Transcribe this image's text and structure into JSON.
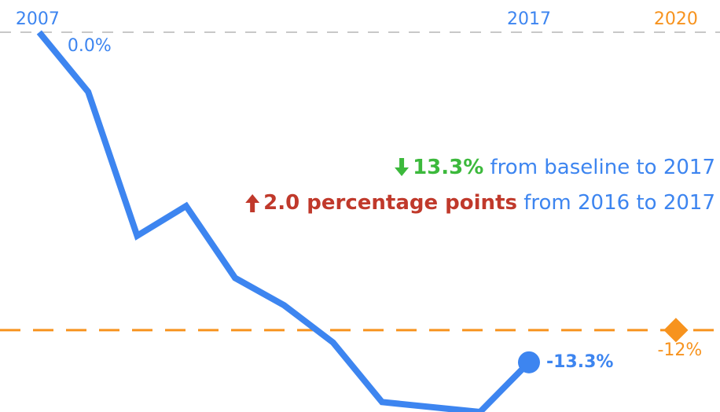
{
  "chart_data": {
    "type": "line",
    "x": [
      2007,
      2008,
      2009,
      2010,
      2011,
      2012,
      2013,
      2014,
      2015,
      2016,
      2017
    ],
    "series": [
      {
        "color": "#3d85f0",
        "values": [
          0.0,
          -2.4,
          -8.2,
          -7.0,
          -9.9,
          -11.0,
          -12.5,
          -14.9,
          -15.1,
          -15.3,
          -13.3
        ],
        "value_labels": [
          "0.0%",
          null,
          null,
          null,
          null,
          null,
          null,
          null,
          null,
          null,
          "-13.3%"
        ]
      }
    ],
    "target": {
      "x": 2020,
      "value": -12,
      "label": "-12%",
      "color": "#f7931e"
    },
    "xlim": [
      2006.2,
      2020.9
    ],
    "ylim": [
      -15.3,
      1.3
    ],
    "xticks": [
      2007,
      2017,
      2020
    ],
    "xtick_colors": [
      "#3d85f0",
      "#3d85f0",
      "#f7931e"
    ],
    "annotations": [
      {
        "bold": "13.3%",
        "text": " from baseline to 2017",
        "color": "#3cb93c",
        "direction": "down"
      },
      {
        "bold": "2.0 percentage points",
        "text": " from 2016 to 2017",
        "color": "#c0392b",
        "direction": "up"
      }
    ]
  }
}
